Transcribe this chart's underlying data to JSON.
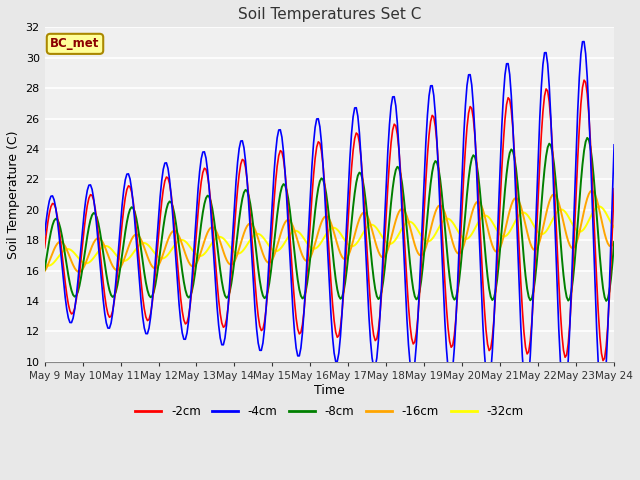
{
  "title": "Soil Temperatures Set C",
  "xlabel": "Time",
  "ylabel": "Soil Temperature (C)",
  "ylim": [
    10,
    32
  ],
  "bg_color": "#e8e8e8",
  "plot_bg": "#f0f0f0",
  "legend_labels": [
    "-2cm",
    "-4cm",
    "-8cm",
    "-16cm",
    "-32cm"
  ],
  "annotation_text": "BC_met",
  "xtick_labels": [
    "May 9",
    "May 10",
    "May 11",
    "May 12",
    "May 13",
    "May 14",
    "May 15",
    "May 16",
    "May 17",
    "May 18",
    "May 19",
    "May 20",
    "May 21",
    "May 22",
    "May 23",
    "May 24"
  ]
}
